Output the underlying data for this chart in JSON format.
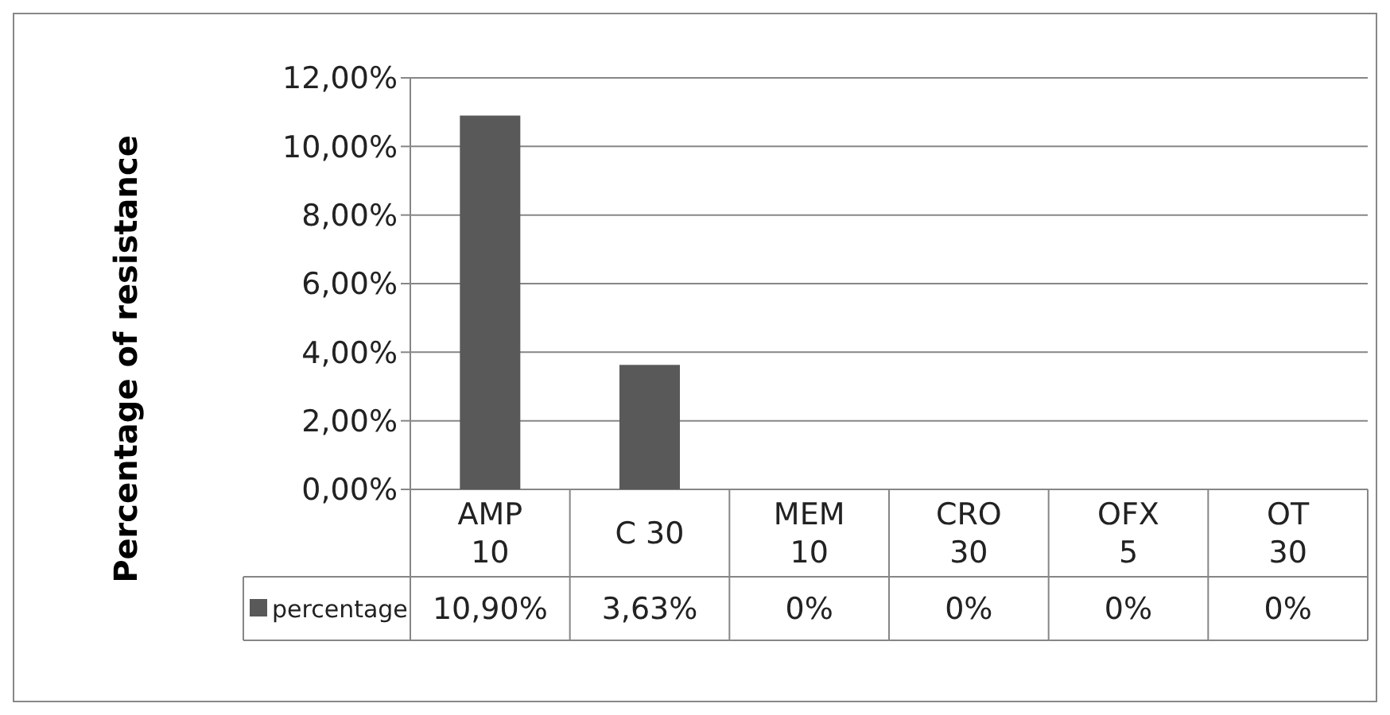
{
  "chart_data": {
    "type": "bar",
    "ylabel": "Percentage of resistance",
    "categories": [
      "AMP\n10",
      "C 30",
      "MEM\n10",
      "CRO\n30",
      "OFX\n5",
      "OT\n30"
    ],
    "series": [
      {
        "name": "percentage",
        "color": "#595959",
        "values": [
          10.9,
          3.63,
          0,
          0,
          0,
          0
        ],
        "value_labels": [
          "10,90%",
          "3,63%",
          "0%",
          "0%",
          "0%",
          "0%"
        ]
      }
    ],
    "ylim": [
      0,
      12
    ],
    "yticks": [
      {
        "value": 0,
        "label": "0,00%"
      },
      {
        "value": 2,
        "label": "2,00%"
      },
      {
        "value": 4,
        "label": "4,00%"
      },
      {
        "value": 6,
        "label": "6,00%"
      },
      {
        "value": 8,
        "label": "8,00%"
      },
      {
        "value": 10,
        "label": "10,00%"
      },
      {
        "value": 12,
        "label": "12,00%"
      }
    ],
    "grid": "y",
    "legend": "bottom"
  }
}
